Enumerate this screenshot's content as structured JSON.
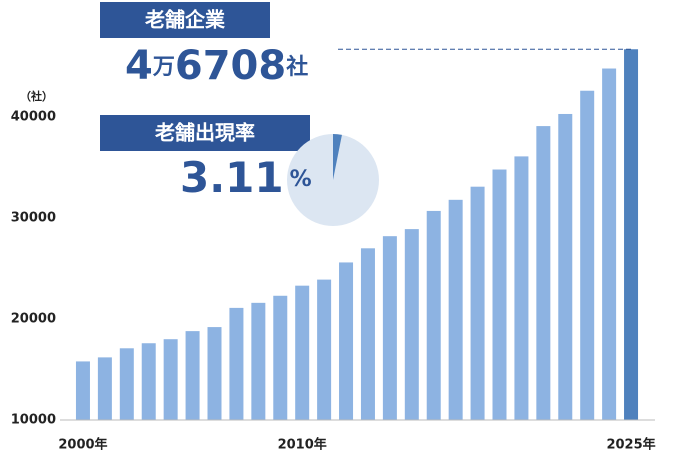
{
  "chart_data": {
    "type": "bar",
    "unit_label": "（社）",
    "categories": [
      "2000年",
      null,
      null,
      null,
      null,
      null,
      null,
      null,
      null,
      null,
      "2010年",
      null,
      null,
      null,
      null,
      null,
      null,
      null,
      null,
      null,
      null,
      null,
      null,
      null,
      null,
      "2025年"
    ],
    "values": [
      15800,
      16200,
      17100,
      17600,
      18000,
      18800,
      19200,
      21100,
      21600,
      22300,
      23300,
      23900,
      25600,
      27000,
      28200,
      28900,
      30700,
      31800,
      33100,
      34800,
      36100,
      39100,
      40300,
      42600,
      44800,
      46708
    ],
    "color": "#8db3e2",
    "highlight_color": "#4f81bd",
    "ylim": [
      10000,
      47000
    ],
    "yticks": [
      10000,
      20000,
      30000,
      40000
    ],
    "grid": false,
    "badge1": "老舗企業",
    "count_parts": [
      "4",
      "万",
      "6708",
      "社"
    ],
    "badge2": "老舗出現率",
    "rate": 3.11,
    "rate_unit": "%"
  }
}
